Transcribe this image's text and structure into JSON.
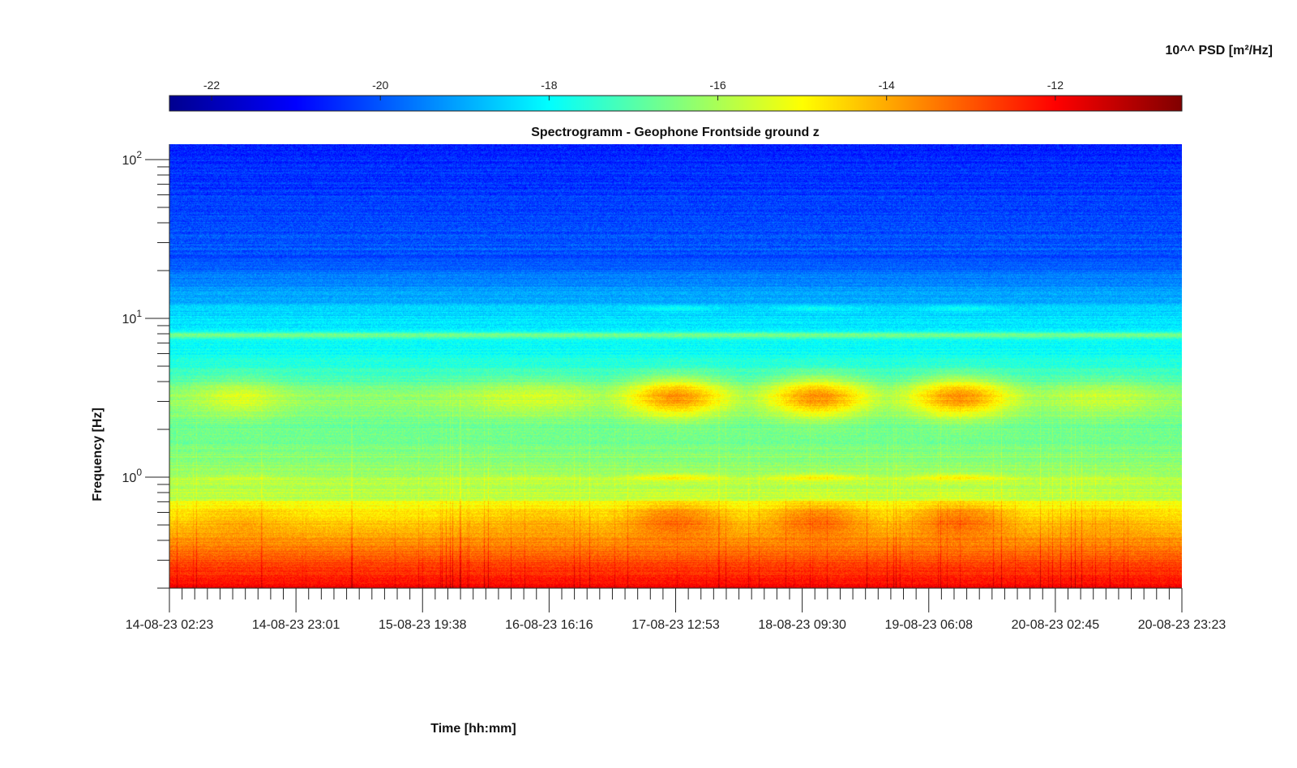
{
  "chart_data": {
    "type": "heatmap",
    "title": "Spectrogramm - Geophone Frontside ground z",
    "xlabel": "Time [hh:mm]",
    "ylabel": "Frequency [Hz]",
    "yscale": "log",
    "ylim": [
      0.2,
      125
    ],
    "y_ticks": [
      {
        "value": 100,
        "label": "10^2"
      },
      {
        "value": 10,
        "label": "10^1"
      },
      {
        "value": 1,
        "label": "10^0"
      }
    ],
    "x_ticks": [
      "14-08-23 02:23",
      "14-08-23 23:01",
      "15-08-23 19:38",
      "16-08-23 16:16",
      "17-08-23 12:53",
      "18-08-23 09:30",
      "19-08-23 06:08",
      "20-08-23 02:45",
      "20-08-23 23:23"
    ],
    "colorbar": {
      "label": "10^^ PSD [m²/Hz]",
      "range": [
        -22.5,
        -10.5
      ],
      "ticks": [
        -22,
        -20,
        -18,
        -16,
        -14,
        -12
      ],
      "colormap": "jet",
      "placement": "top"
    },
    "features": {
      "low_frequency_band_hz": [
        0.2,
        0.7
      ],
      "low_frequency_level": -12.0,
      "microseism_band_hz": [
        2.5,
        4.0
      ],
      "active_periods": [
        "17-08-23 12:53",
        "18-08-23 09:30",
        "19-08-23 06:08"
      ],
      "persistent_line_hz": 7.8,
      "high_frequency_level": -20.5
    }
  }
}
